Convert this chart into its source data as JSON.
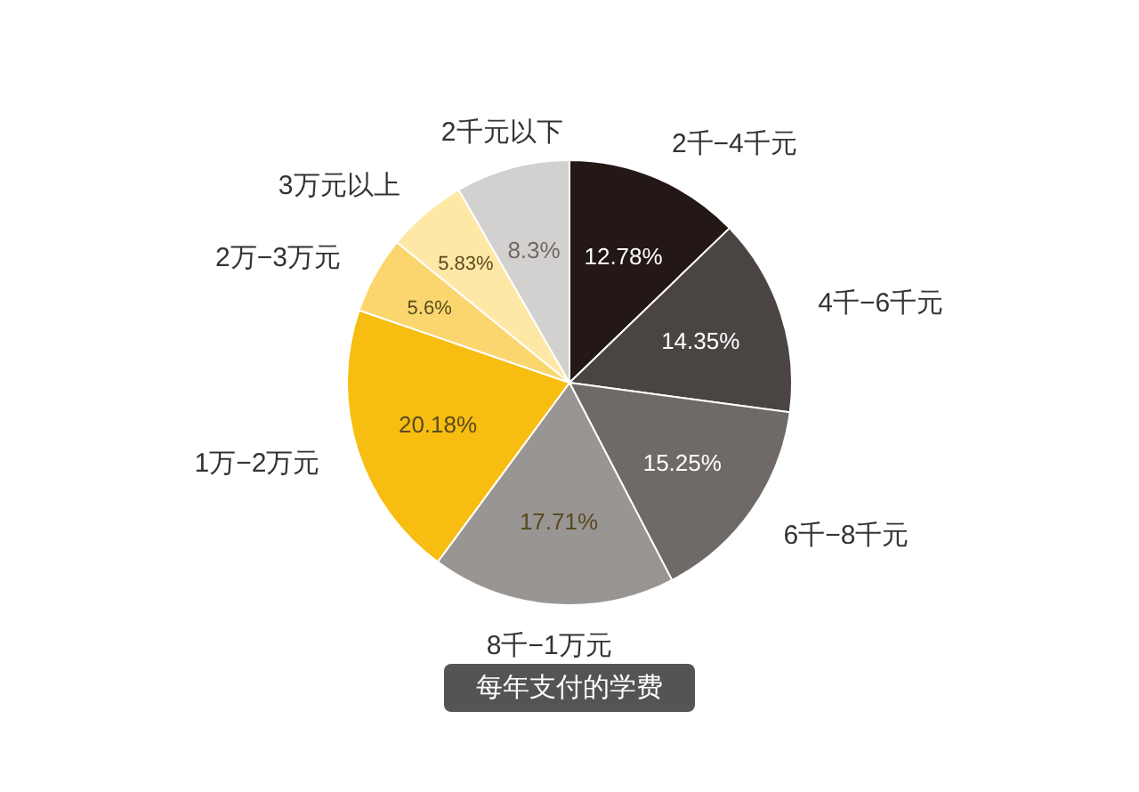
{
  "chart_data": {
    "type": "pie",
    "title": "每年支付的学费",
    "categories": [
      "2千−4千元",
      "4千−6千元",
      "6千−8千元",
      "8千−1万元",
      "1万−2万元",
      "2万−3万元",
      "3万元以上",
      "2千元以下"
    ],
    "values": [
      12.78,
      14.35,
      15.25,
      17.71,
      20.18,
      5.6,
      5.83,
      8.3
    ],
    "value_labels": [
      "12.78%",
      "14.35%",
      "15.25%",
      "17.71%",
      "20.18%",
      "5.6%",
      "5.83%",
      "8.3%"
    ],
    "colors": [
      "#231815",
      "#4a4443",
      "#6f6a68",
      "#999593",
      "#f7bd10",
      "#fbd66e",
      "#fde8a6",
      "#d3d1cf"
    ]
  }
}
